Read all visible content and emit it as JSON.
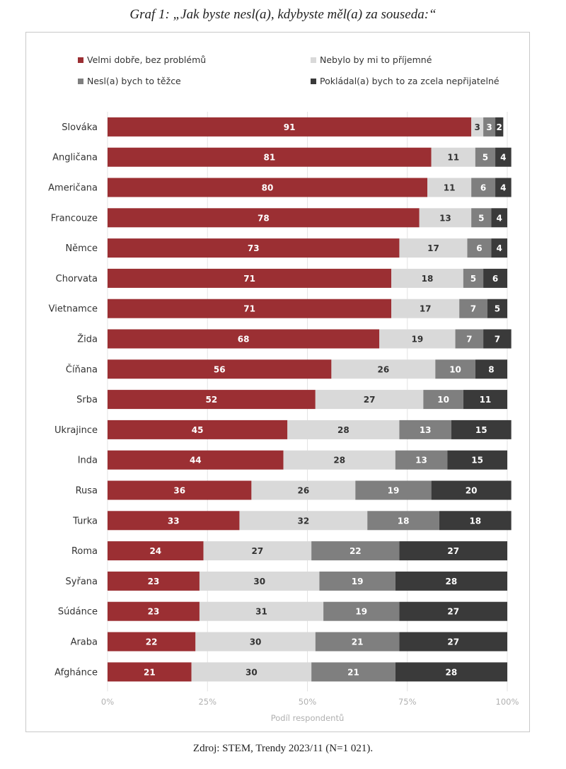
{
  "title": "Graf 1: „Jak byste nesl(a), kdybyste měl(a) za souseda:“",
  "source": "Zdroj: STEM, Trendy 2023/11 (N=1 021).",
  "chart_data": {
    "type": "bar",
    "orientation": "horizontal",
    "stacked": true,
    "xlabel": "Podíl respondentů",
    "xlim": [
      0,
      100
    ],
    "x_ticks": [
      "0%",
      "25%",
      "50%",
      "75%",
      "100%"
    ],
    "grid": true,
    "legend_position": "top",
    "categories": [
      "Slováka",
      "Angličana",
      "Američana",
      "Francouze",
      "Němce",
      "Chorvata",
      "Vietnamce",
      "Žida",
      "Číňana",
      "Srba",
      "Ukrajince",
      "Inda",
      "Rusa",
      "Turka",
      "Roma",
      "Syřana",
      "Súdánce",
      "Araba",
      "Afghánce"
    ],
    "series": [
      {
        "name": "Velmi dobře, bez problémů",
        "color": "#9b2f33",
        "label_color": "#ffffff",
        "values": [
          91,
          81,
          80,
          78,
          73,
          71,
          71,
          68,
          56,
          52,
          45,
          44,
          36,
          33,
          24,
          23,
          23,
          22,
          21
        ]
      },
      {
        "name": "Nebylo by mi to příjemné",
        "color": "#d9d9d9",
        "label_color": "#333333",
        "values": [
          3,
          11,
          11,
          13,
          17,
          18,
          17,
          19,
          26,
          27,
          28,
          28,
          26,
          32,
          27,
          30,
          31,
          30,
          30
        ]
      },
      {
        "name": "Nesl(a) bych to těžce",
        "color": "#7f7f7f",
        "label_color": "#ffffff",
        "values": [
          3,
          5,
          6,
          5,
          6,
          5,
          7,
          7,
          10,
          10,
          13,
          13,
          19,
          18,
          22,
          19,
          19,
          21,
          21
        ]
      },
      {
        "name": "Pokládal(a) bych to za zcela nepřijatelné",
        "color": "#3a3a3a",
        "label_color": "#ffffff",
        "values": [
          2,
          4,
          4,
          4,
          4,
          6,
          5,
          7,
          8,
          11,
          15,
          15,
          20,
          18,
          27,
          28,
          27,
          27,
          28
        ]
      }
    ]
  }
}
